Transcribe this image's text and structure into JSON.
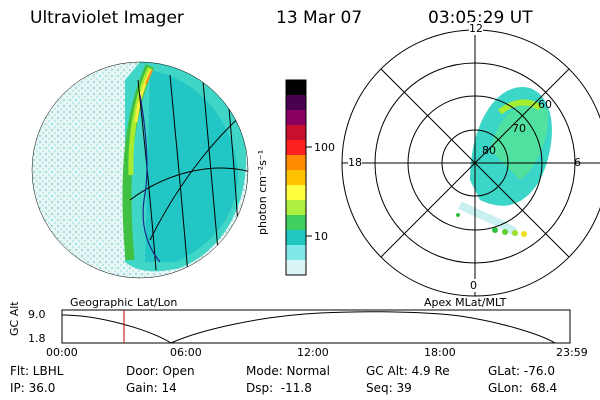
{
  "header": {
    "instrument": "Ultraviolet Imager",
    "date": "13 Mar 07",
    "time": "03:05:29 UT"
  },
  "colorbar": {
    "unit_label": "photon cm⁻²s⁻¹",
    "ticks": [
      "100",
      "10"
    ],
    "colors": [
      "#000000",
      "#4a0050",
      "#8a0060",
      "#c8102e",
      "#ff2020",
      "#ff8c00",
      "#ffc000",
      "#ffff40",
      "#b0f040",
      "#40d060",
      "#20c8c0",
      "#80e8e8",
      "#d8f4f4"
    ]
  },
  "polar": {
    "label": "Apex MLat/MLT",
    "mlt_labels": [
      "12",
      "18",
      "6",
      "0"
    ],
    "lat_labels": [
      "60",
      "70",
      "80"
    ]
  },
  "geo": {
    "label": "Geographic Lat/Lon"
  },
  "altplot": {
    "axis_label": "GC Alt",
    "y_ticks": [
      "9.0",
      "1.8"
    ],
    "x_ticks": [
      "00:00",
      "06:00",
      "12:00",
      "18:00",
      "23:59"
    ],
    "current_time_marker": "03:05"
  },
  "info": {
    "row1": [
      "Flt: LBHL",
      "Door: Open",
      "Mode: Normal",
      "GC Alt: 4.9 Re",
      "GLat: -76.0"
    ],
    "row2": [
      "IP: 36.0",
      "Gain: 14",
      "Dsp:  -11.8",
      "Seq: 39",
      "GLon:  68.4"
    ]
  }
}
